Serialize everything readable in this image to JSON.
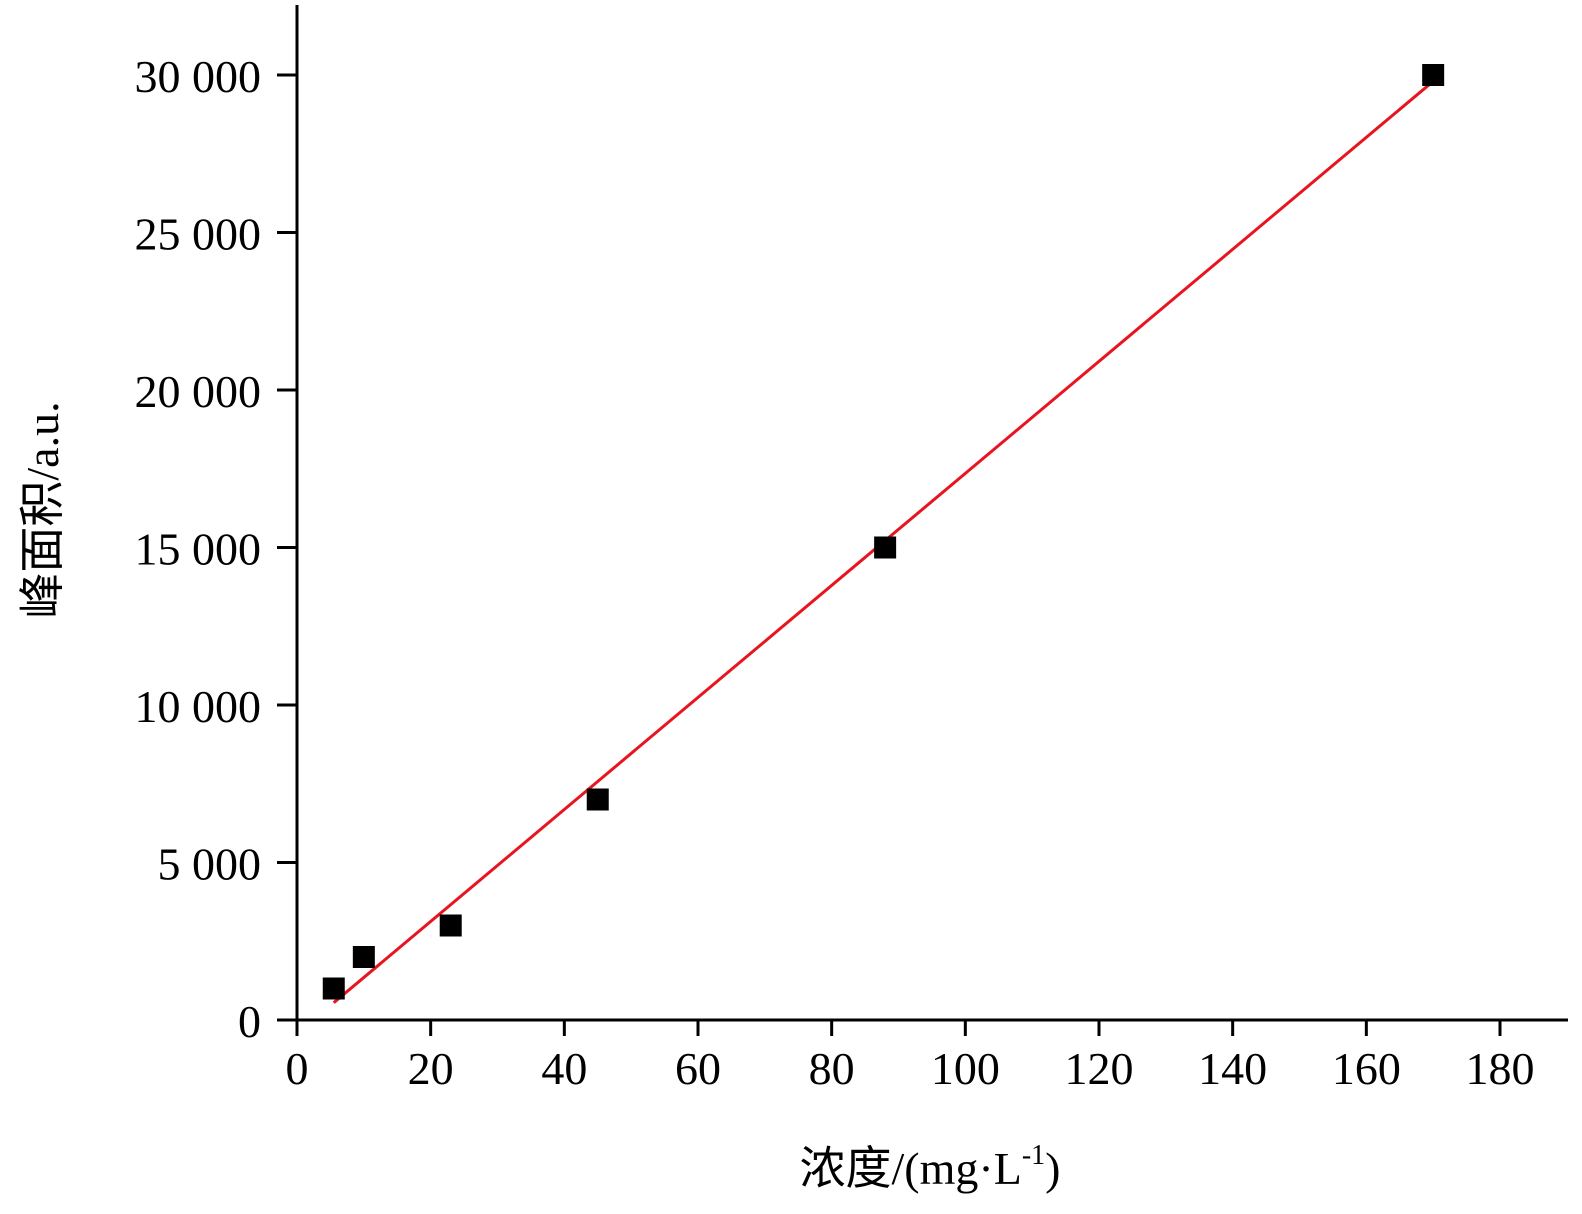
{
  "chart_data": {
    "type": "scatter",
    "xlabel": "浓度/(mg·L",
    "xlabel_sup": "-1",
    "xlabel_end": ")",
    "ylabel": "峰面积/a.u.",
    "xlim": [
      0,
      190
    ],
    "ylim": [
      0,
      32000
    ],
    "x_ticks": [
      0,
      20,
      40,
      60,
      80,
      100,
      120,
      140,
      160,
      180
    ],
    "x_tick_labels": [
      "0",
      "20",
      "40",
      "60",
      "80",
      "100",
      "120",
      "140",
      "160",
      "180"
    ],
    "y_ticks": [
      0,
      5000,
      10000,
      15000,
      20000,
      25000,
      30000
    ],
    "y_tick_labels": [
      "0",
      "5 000",
      "10 000",
      "15 000",
      "20 000",
      "25 000",
      "30 000"
    ],
    "grid": false,
    "legend": "none",
    "series": [
      {
        "kind": "points",
        "marker": "square",
        "color": "#000000",
        "x": [
          5.5,
          10,
          23,
          45,
          88,
          170
        ],
        "y": [
          1000,
          2000,
          3000,
          7000,
          15000,
          30000
        ]
      },
      {
        "kind": "fit-line",
        "color": "#e8141f",
        "x": [
          5.5,
          170
        ],
        "y": [
          550,
          29800
        ]
      }
    ]
  }
}
